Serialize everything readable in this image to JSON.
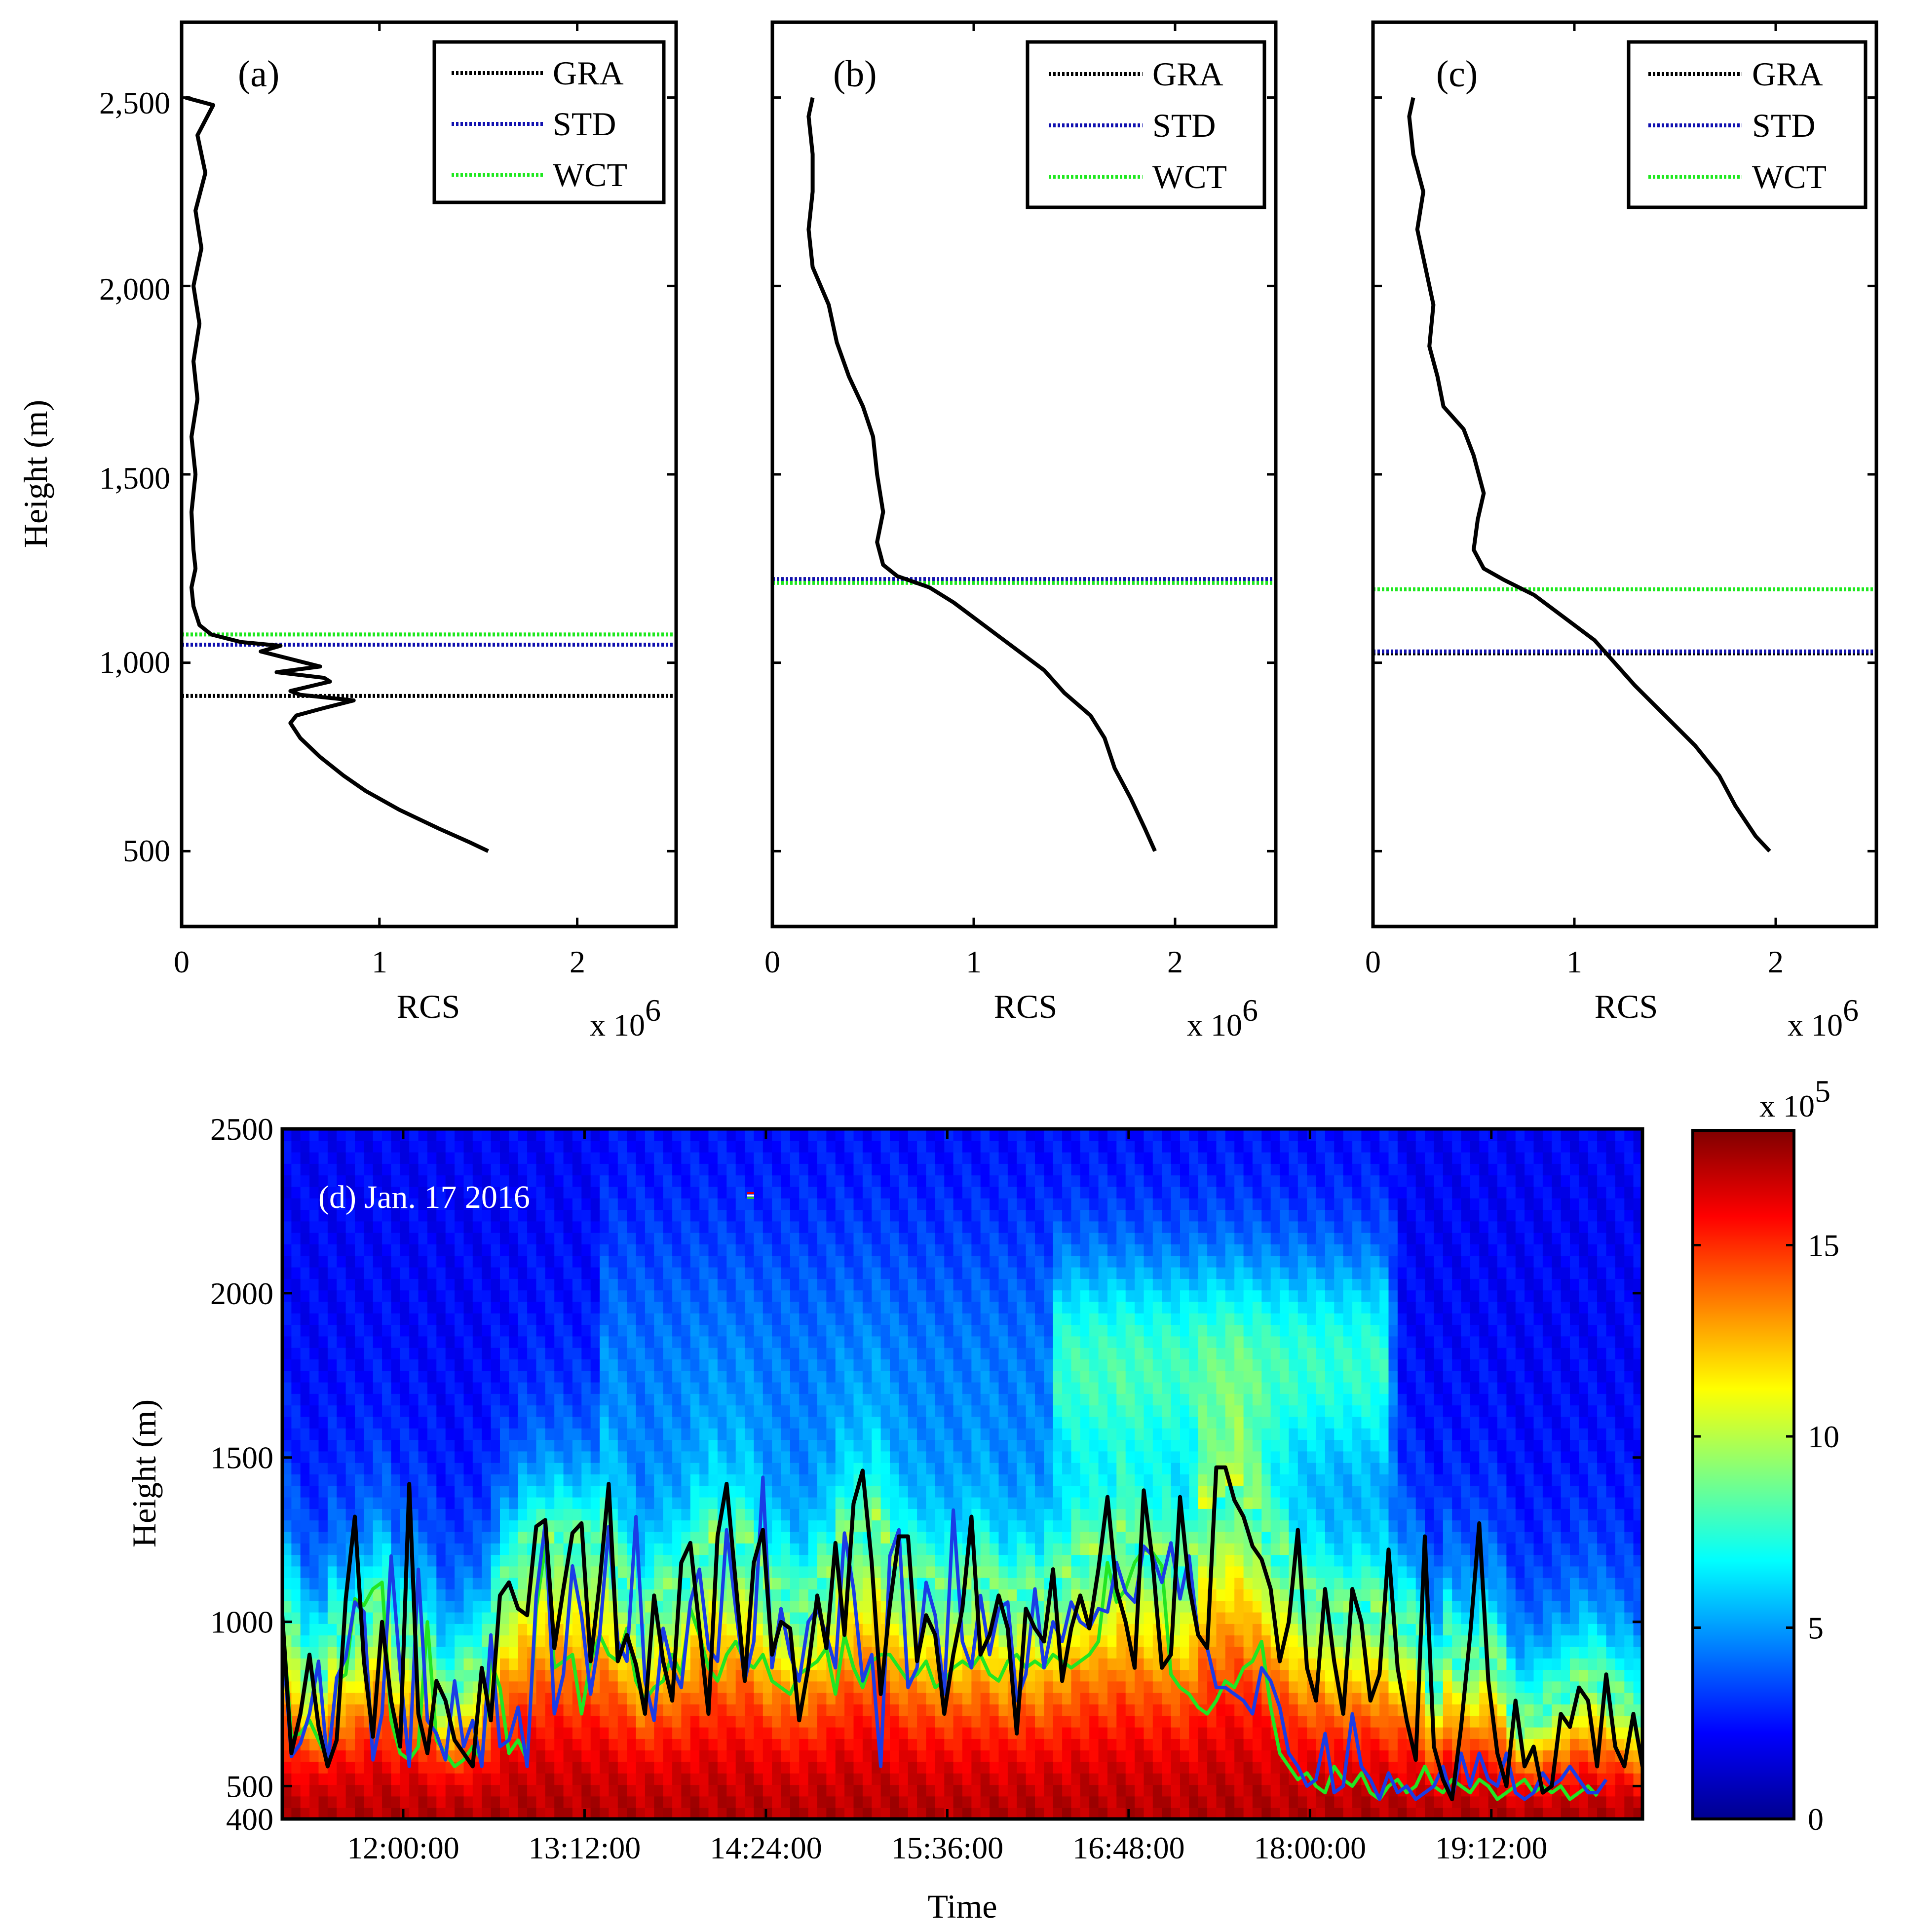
{
  "figure": {
    "background": "#ffffff"
  },
  "chart_data": [
    {
      "id": "a",
      "type": "line",
      "panel_label": "(a)",
      "xlabel": "RCS",
      "x_exponent_base": "x 10",
      "x_exponent_power": "6",
      "ylabel": "Height (m)",
      "xlim": [
        0,
        2.5
      ],
      "ylim": [
        300,
        2700
      ],
      "xticks": [
        0,
        1,
        2
      ],
      "xtick_labels": [
        "0",
        "1",
        "2"
      ],
      "yticks": [
        500,
        1000,
        1500,
        2000,
        2500
      ],
      "ytick_labels": [
        "500",
        "1,000",
        "1,500",
        "2,000",
        "2,500"
      ],
      "show_ytick_labels": true,
      "profile": {
        "name": "RCS profile",
        "color": "#000000",
        "points": [
          [
            1.55,
            500
          ],
          [
            1.45,
            525
          ],
          [
            1.3,
            560
          ],
          [
            1.1,
            610
          ],
          [
            0.93,
            660
          ],
          [
            0.82,
            700
          ],
          [
            0.7,
            750
          ],
          [
            0.6,
            800
          ],
          [
            0.55,
            840
          ],
          [
            0.58,
            860
          ],
          [
            0.72,
            880
          ],
          [
            0.87,
            900
          ],
          [
            0.6,
            915
          ],
          [
            0.55,
            925
          ],
          [
            0.75,
            950
          ],
          [
            0.72,
            960
          ],
          [
            0.48,
            975
          ],
          [
            0.7,
            990
          ],
          [
            0.55,
            1010
          ],
          [
            0.4,
            1030
          ],
          [
            0.5,
            1045
          ],
          [
            0.3,
            1055
          ],
          [
            0.15,
            1075
          ],
          [
            0.09,
            1100
          ],
          [
            0.06,
            1150
          ],
          [
            0.05,
            1200
          ],
          [
            0.07,
            1250
          ],
          [
            0.06,
            1300
          ],
          [
            0.05,
            1400
          ],
          [
            0.07,
            1500
          ],
          [
            0.05,
            1600
          ],
          [
            0.08,
            1700
          ],
          [
            0.06,
            1800
          ],
          [
            0.09,
            1900
          ],
          [
            0.06,
            2000
          ],
          [
            0.1,
            2100
          ],
          [
            0.07,
            2200
          ],
          [
            0.12,
            2300
          ],
          [
            0.08,
            2400
          ],
          [
            0.16,
            2480
          ],
          [
            0.02,
            2500
          ]
        ]
      },
      "legend": [
        {
          "label": "GRA",
          "color": "#000000"
        },
        {
          "label": "STD",
          "color": "#1010b0"
        },
        {
          "label": "WCT",
          "color": "#1ee81e"
        }
      ],
      "pbl_heights": {
        "GRA": 912,
        "STD": 1048,
        "WCT": 1075
      }
    },
    {
      "id": "b",
      "type": "line",
      "panel_label": "(b)",
      "xlabel": "RCS",
      "x_exponent_base": "x 10",
      "x_exponent_power": "6",
      "xlim": [
        0,
        2.5
      ],
      "ylim": [
        300,
        2700
      ],
      "xticks": [
        0,
        1,
        2
      ],
      "xtick_labels": [
        "0",
        "1",
        "2"
      ],
      "yticks": [
        500,
        1000,
        1500,
        2000,
        2500
      ],
      "show_ytick_labels": false,
      "profile": {
        "name": "RCS profile",
        "color": "#000000",
        "points": [
          [
            1.9,
            500
          ],
          [
            1.85,
            560
          ],
          [
            1.78,
            640
          ],
          [
            1.7,
            720
          ],
          [
            1.65,
            800
          ],
          [
            1.58,
            860
          ],
          [
            1.45,
            920
          ],
          [
            1.35,
            980
          ],
          [
            1.2,
            1040
          ],
          [
            1.05,
            1100
          ],
          [
            0.9,
            1160
          ],
          [
            0.78,
            1200
          ],
          [
            0.62,
            1230
          ],
          [
            0.55,
            1260
          ],
          [
            0.52,
            1320
          ],
          [
            0.55,
            1400
          ],
          [
            0.52,
            1500
          ],
          [
            0.5,
            1600
          ],
          [
            0.45,
            1680
          ],
          [
            0.38,
            1760
          ],
          [
            0.32,
            1850
          ],
          [
            0.28,
            1950
          ],
          [
            0.2,
            2050
          ],
          [
            0.18,
            2150
          ],
          [
            0.2,
            2250
          ],
          [
            0.2,
            2350
          ],
          [
            0.18,
            2450
          ],
          [
            0.2,
            2500
          ]
        ]
      },
      "legend": [
        {
          "label": "GRA",
          "color": "#000000"
        },
        {
          "label": "STD",
          "color": "#1010b0"
        },
        {
          "label": "WCT",
          "color": "#1ee81e"
        }
      ],
      "pbl_heights": {
        "GRA": 1222,
        "STD": 1222,
        "WCT": 1212
      }
    },
    {
      "id": "c",
      "type": "line",
      "panel_label": "(c)",
      "xlabel": "RCS",
      "x_exponent_base": "x 10",
      "x_exponent_power": "6",
      "xlim": [
        0,
        2.5
      ],
      "ylim": [
        300,
        2700
      ],
      "xticks": [
        0,
        1,
        2
      ],
      "xtick_labels": [
        "0",
        "1",
        "2"
      ],
      "yticks": [
        500,
        1000,
        1500,
        2000,
        2500
      ],
      "show_ytick_labels": false,
      "profile": {
        "name": "RCS profile",
        "color": "#000000",
        "points": [
          [
            1.97,
            500
          ],
          [
            1.9,
            540
          ],
          [
            1.8,
            620
          ],
          [
            1.72,
            700
          ],
          [
            1.6,
            780
          ],
          [
            1.45,
            860
          ],
          [
            1.3,
            940
          ],
          [
            1.2,
            1000
          ],
          [
            1.1,
            1060
          ],
          [
            0.95,
            1120
          ],
          [
            0.8,
            1180
          ],
          [
            0.65,
            1220
          ],
          [
            0.55,
            1250
          ],
          [
            0.5,
            1300
          ],
          [
            0.52,
            1380
          ],
          [
            0.55,
            1450
          ],
          [
            0.5,
            1550
          ],
          [
            0.45,
            1620
          ],
          [
            0.35,
            1680
          ],
          [
            0.32,
            1760
          ],
          [
            0.28,
            1840
          ],
          [
            0.3,
            1950
          ],
          [
            0.26,
            2050
          ],
          [
            0.22,
            2150
          ],
          [
            0.25,
            2250
          ],
          [
            0.2,
            2350
          ],
          [
            0.18,
            2450
          ],
          [
            0.2,
            2500
          ]
        ]
      },
      "legend": [
        {
          "label": "GRA",
          "color": "#000000"
        },
        {
          "label": "STD",
          "color": "#1010b0"
        },
        {
          "label": "WCT",
          "color": "#1ee81e"
        }
      ],
      "pbl_heights": {
        "GRA": 1025,
        "STD": 1030,
        "WCT": 1195
      }
    },
    {
      "id": "d",
      "type": "heatmap",
      "panel_label": "(d) Jan. 17 2016",
      "xlabel": "Time",
      "ylabel": "Height (m)",
      "x_range_hours": [
        11.2,
        20.2
      ],
      "ylim": [
        400,
        2500
      ],
      "yticks": [
        400,
        500,
        1000,
        1500,
        2000,
        2500
      ],
      "ytick_labels": [
        "400",
        "500",
        "1000",
        "1500",
        "2000",
        "2500"
      ],
      "xticks_hours": [
        12.0,
        13.2,
        14.4,
        15.6,
        16.8,
        18.0,
        19.2
      ],
      "xtick_labels": [
        "12:00:00",
        "13:12:00",
        "14:24:00",
        "15:36:00",
        "16:48:00",
        "18:00:00",
        "19:12:00"
      ],
      "colorbar": {
        "range": [
          0,
          18
        ],
        "ticks": [
          0,
          5,
          10,
          15
        ],
        "tick_labels": [
          "0",
          "5",
          "10",
          "15"
        ],
        "exponent_base": "x 10",
        "exponent_power": "5",
        "colormap": "jet"
      },
      "series": [
        {
          "name": "GRA",
          "color": "#000000",
          "start_hour": 11.2,
          "step_hours": 0.06,
          "values": [
            1020,
            600,
            720,
            900,
            680,
            560,
            640,
            1070,
            1320,
            880,
            650,
            1000,
            760,
            620,
            1420,
            720,
            600,
            820,
            760,
            640,
            600,
            560,
            860,
            700,
            1080,
            1120,
            1040,
            1020,
            1290,
            1310,
            920,
            1100,
            1270,
            1300,
            880,
            1120,
            1420,
            880,
            960,
            870,
            720,
            1080,
            880,
            760,
            1180,
            1240,
            980,
            720,
            1260,
            1420,
            1120,
            820,
            1180,
            1280,
            900,
            1000,
            980,
            700,
            860,
            1080,
            920,
            1240,
            960,
            1360,
            1460,
            1180,
            780,
            1050,
            1260,
            1260,
            880,
            1020,
            960,
            720,
            900,
            1040,
            1320,
            900,
            960,
            1080,
            980,
            660,
            1040,
            980,
            940,
            1160,
            820,
            980,
            1080,
            980,
            1160,
            1380,
            1100,
            1000,
            860,
            1400,
            1180,
            860,
            900,
            1380,
            1110,
            960,
            920,
            1470,
            1470,
            1370,
            1320,
            1230,
            1190,
            1100,
            880,
            1000,
            1280,
            860,
            760,
            1100,
            880,
            720,
            1100,
            1000,
            760,
            840,
            1220,
            860,
            700,
            580,
            1260,
            620,
            520,
            460,
            680,
            960,
            1300,
            820,
            600,
            500,
            760,
            560,
            620,
            480,
            500,
            720,
            680,
            800,
            760,
            560,
            840,
            620,
            560,
            720,
            560
          ]
        },
        {
          "name": "STD",
          "color": "#1a3ce6",
          "start_hour": 11.2,
          "step_hours": 0.06,
          "values": [
            960,
            590,
            630,
            720,
            880,
            560,
            830,
            890,
            1060,
            1030,
            580,
            720,
            1200,
            850,
            560,
            1160,
            700,
            660,
            580,
            820,
            620,
            700,
            560,
            960,
            620,
            640,
            740,
            560,
            1080,
            1300,
            720,
            840,
            1170,
            1020,
            780,
            960,
            1290,
            940,
            880,
            1320,
            820,
            700,
            980,
            860,
            800,
            1060,
            1160,
            920,
            880,
            1280,
            1040,
            820,
            940,
            1440,
            860,
            1040,
            900,
            820,
            1000,
            1040,
            960,
            860,
            1270,
            1100,
            820,
            900,
            560,
            1200,
            1280,
            800,
            860,
            1120,
            1020,
            780,
            1340,
            940,
            860,
            1080,
            900,
            1040,
            1060,
            760,
            840,
            1100,
            860,
            1000,
            940,
            1060,
            1000,
            980,
            1040,
            1030,
            1180,
            1090,
            1060,
            1230,
            1200,
            1120,
            1240,
            1070,
            1200,
            960,
            920,
            800,
            800,
            780,
            760,
            720,
            860,
            820,
            740,
            600,
            560,
            500,
            520,
            660,
            480,
            500,
            720,
            560,
            520,
            460,
            540,
            480,
            500,
            460,
            480,
            500,
            560,
            460,
            600,
            500,
            600,
            520,
            500,
            600,
            480,
            460,
            480,
            540,
            500,
            520,
            560,
            520,
            480,
            480,
            520
          ]
        },
        {
          "name": "WCT",
          "color": "#22e622",
          "start_hour": 11.2,
          "step_hours": 0.06,
          "values": [
            1020,
            650,
            660,
            700,
            640,
            580,
            820,
            840,
            1070,
            1050,
            1100,
            1120,
            700,
            600,
            580,
            620,
            1000,
            640,
            600,
            560,
            580,
            620,
            580,
            880,
            800,
            600,
            640,
            580,
            1040,
            1230,
            860,
            880,
            900,
            720,
            880,
            960,
            900,
            880,
            980,
            820,
            760,
            800,
            820,
            900,
            840,
            1040,
            960,
            860,
            820,
            900,
            940,
            880,
            860,
            900,
            820,
            800,
            780,
            840,
            860,
            880,
            920,
            780,
            960,
            860,
            800,
            880,
            900,
            900,
            860,
            820,
            840,
            880,
            800,
            820,
            860,
            880,
            860,
            900,
            840,
            820,
            880,
            900,
            860,
            880,
            860,
            900,
            880,
            860,
            880,
            900,
            940,
            1180,
            1060,
            1100,
            1180,
            1220,
            1210,
            1170,
            840,
            800,
            780,
            740,
            720,
            760,
            820,
            800,
            860,
            880,
            940,
            740,
            600,
            560,
            520,
            540,
            500,
            480,
            560,
            520,
            500,
            540,
            480,
            460,
            500,
            520,
            480,
            500,
            560,
            500,
            480,
            520,
            500,
            480,
            520,
            500,
            460,
            480,
            500,
            520,
            480,
            500,
            480,
            500,
            460,
            480,
            500,
            470
          ]
        }
      ]
    }
  ]
}
